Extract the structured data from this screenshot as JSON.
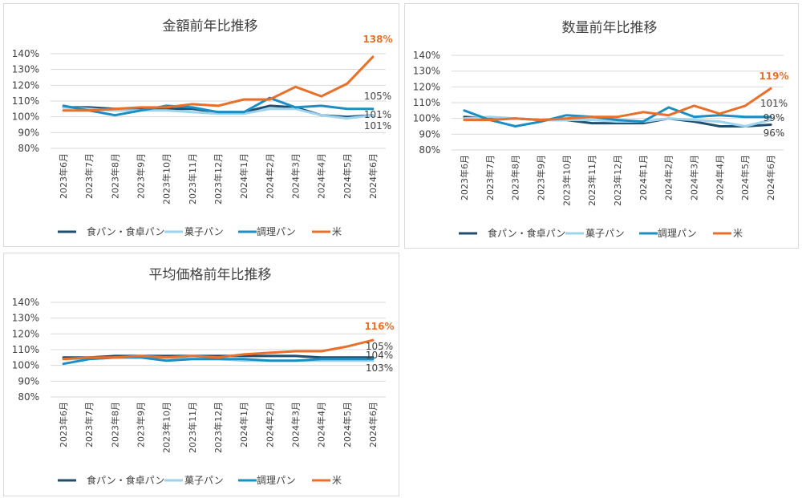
{
  "chart_data": [
    {
      "type": "line",
      "title": "金額前年比推移",
      "x": [
        "2023年6月",
        "2023年7月",
        "2023年8月",
        "2023年9月",
        "2023年10月",
        "2023年11月",
        "2023年12月",
        "2024年1月",
        "2024年2月",
        "2024年3月",
        "2024年4月",
        "2024年5月",
        "2024年6月"
      ],
      "ylim": [
        80,
        140
      ],
      "yticks": [
        "80%",
        "90%",
        "100%",
        "110%",
        "120%",
        "130%",
        "140%"
      ],
      "grid": true,
      "legend_position": "bottom",
      "series": [
        {
          "name": "食パン・食卓パン",
          "color": "#1f4e6e",
          "values": [
            106,
            106,
            105,
            105,
            105,
            105,
            103,
            103,
            107,
            106,
            101,
            100,
            101
          ]
        },
        {
          "name": "菓子パン",
          "color": "#9dd3ec",
          "values": [
            106,
            105,
            104,
            104,
            104,
            103,
            102,
            102,
            105,
            105,
            101,
            99,
            101
          ]
        },
        {
          "name": "調理パン",
          "color": "#1b8fc4",
          "values": [
            107,
            104,
            101,
            104,
            107,
            106,
            103,
            103,
            112,
            106,
            107,
            105,
            105
          ]
        },
        {
          "name": "米",
          "color": "#e8702a",
          "values": [
            104,
            104,
            105,
            106,
            106,
            108,
            107,
            111,
            111,
            119,
            113,
            121,
            138
          ]
        }
      ],
      "data_labels": [
        {
          "text": "138%",
          "series": 3,
          "bold": true
        },
        {
          "text": "105%",
          "series": 2,
          "bold": false
        },
        {
          "text": "101%",
          "series": 0,
          "bold": false
        },
        {
          "text": "101%",
          "series": 1,
          "bold": false
        }
      ]
    },
    {
      "type": "line",
      "title": "数量前年比推移",
      "x": [
        "2023年6月",
        "2023年7月",
        "2023年8月",
        "2023年9月",
        "2023年10月",
        "2023年11月",
        "2023年12月",
        "2024年1月",
        "2024年2月",
        "2024年3月",
        "2024年4月",
        "2024年5月",
        "2024年6月"
      ],
      "ylim": [
        80,
        140
      ],
      "yticks": [
        "80%",
        "90%",
        "100%",
        "110%",
        "120%",
        "130%",
        "140%"
      ],
      "grid": true,
      "legend_position": "bottom",
      "series": [
        {
          "name": "食パン・食卓パン",
          "color": "#1f4e6e",
          "values": [
            101,
            100,
            100,
            99,
            99,
            97,
            97,
            97,
            100,
            98,
            95,
            95,
            96
          ]
        },
        {
          "name": "菓子パン",
          "color": "#9dd3ec",
          "values": [
            100,
            101,
            100,
            99,
            99,
            99,
            98,
            98,
            100,
            99,
            98,
            95,
            99
          ]
        },
        {
          "name": "調理パン",
          "color": "#1b8fc4",
          "values": [
            105,
            99,
            95,
            98,
            102,
            101,
            99,
            98,
            107,
            101,
            102,
            101,
            101
          ]
        },
        {
          "name": "米",
          "color": "#e8702a",
          "values": [
            99,
            99,
            100,
            99,
            100,
            101,
            101,
            104,
            102,
            108,
            103,
            108,
            119
          ]
        }
      ],
      "data_labels": [
        {
          "text": "119%",
          "series": 3,
          "bold": true
        },
        {
          "text": "101%",
          "series": 2,
          "bold": false
        },
        {
          "text": "99%",
          "series": 1,
          "bold": false
        },
        {
          "text": "96%",
          "series": 0,
          "bold": false
        }
      ]
    },
    {
      "type": "line",
      "title": "平均価格前年比推移",
      "x": [
        "2023年6月",
        "2023年7月",
        "2023年8月",
        "2023年9月",
        "2023年10月",
        "2023年11月",
        "2023年12月",
        "2024年1月",
        "2024年2月",
        "2024年3月",
        "2024年4月",
        "2024年5月",
        "2024年6月"
      ],
      "ylim": [
        80,
        140
      ],
      "yticks": [
        "80%",
        "90%",
        "100%",
        "110%",
        "120%",
        "130%",
        "140%"
      ],
      "grid": true,
      "legend_position": "bottom",
      "series": [
        {
          "name": "食パン・食卓パン",
          "color": "#1f4e6e",
          "values": [
            105,
            105,
            106,
            106,
            106,
            106,
            106,
            106,
            106,
            106,
            105,
            105,
            105
          ]
        },
        {
          "name": "菓子パン",
          "color": "#9dd3ec",
          "values": [
            104,
            104,
            105,
            105,
            105,
            104,
            104,
            103,
            103,
            103,
            103,
            103,
            103
          ]
        },
        {
          "name": "調理パン",
          "color": "#1b8fc4",
          "values": [
            101,
            104,
            105,
            105,
            103,
            104,
            104,
            104,
            103,
            103,
            104,
            104,
            104
          ]
        },
        {
          "name": "米",
          "color": "#e8702a",
          "values": [
            104,
            105,
            105,
            106,
            105,
            106,
            105,
            107,
            108,
            109,
            109,
            112,
            116
          ]
        }
      ],
      "data_labels": [
        {
          "text": "116%",
          "series": 3,
          "bold": true
        },
        {
          "text": "105%",
          "series": 0,
          "bold": false
        },
        {
          "text": "104%",
          "series": 2,
          "bold": false
        },
        {
          "text": "103%",
          "series": 1,
          "bold": false
        }
      ]
    }
  ]
}
